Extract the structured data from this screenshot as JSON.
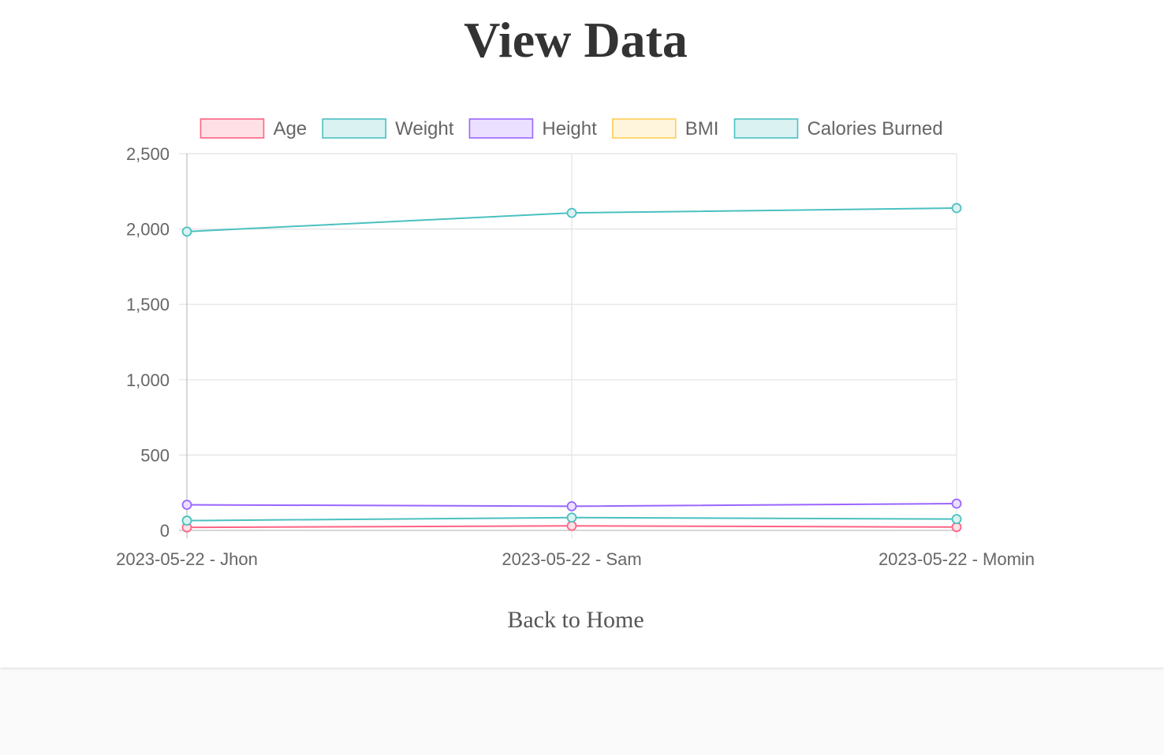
{
  "page": {
    "title": "View Data",
    "back_link": "Back to Home"
  },
  "chart_data": {
    "type": "line",
    "title": "",
    "xlabel": "",
    "ylabel": "",
    "categories": [
      "2023-05-22 - Jhon",
      "2023-05-22 - Sam",
      "2023-05-22 - Momin"
    ],
    "ylim": [
      0,
      2500
    ],
    "yticks": [
      0,
      500,
      1000,
      1500,
      2000,
      2500
    ],
    "ytick_labels": [
      "0",
      "500",
      "1,000",
      "1,500",
      "2,000",
      "2,500"
    ],
    "grid": true,
    "legend_position": "top",
    "series": [
      {
        "name": "Age",
        "values": [
          20,
          30,
          22
        ],
        "color": "#ff6384",
        "fill": "#ffe0e6"
      },
      {
        "name": "Weight",
        "values": [
          65,
          85,
          75
        ],
        "color": "#4bc0c0",
        "fill": "#dbf2f2"
      },
      {
        "name": "Height",
        "values": [
          170,
          160,
          178
        ],
        "color": "#9966ff",
        "fill": "#ebe0ff"
      },
      {
        "name": "BMI",
        "values": [
          null,
          null,
          null
        ],
        "color": "#ffcd56",
        "fill": "#fff5dd"
      },
      {
        "name": "Calories Burned",
        "values": [
          1983,
          2107,
          2139
        ],
        "color": "#4bc0c0",
        "fill": "#dbf2f2"
      }
    ]
  }
}
